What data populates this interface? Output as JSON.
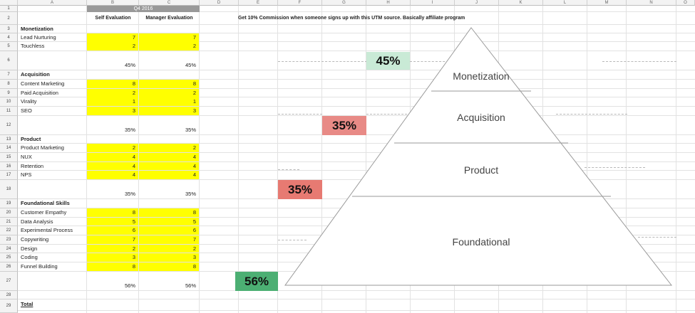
{
  "columns": [
    "A",
    "B",
    "C",
    "D",
    "E",
    "F",
    "G",
    "H",
    "I",
    "J",
    "K",
    "L",
    "M",
    "N",
    "O"
  ],
  "rows": [
    "1",
    "2",
    "3",
    "4",
    "5",
    "6",
    "7",
    "8",
    "9",
    "10",
    "11",
    "12",
    "13",
    "14",
    "15",
    "16",
    "17",
    "18",
    "19",
    "20",
    "21",
    "22",
    "23",
    "24",
    "25",
    "26",
    "27",
    "28",
    "29"
  ],
  "header": {
    "quarter": "Q4 2016",
    "self_eval": "Self Evaluation",
    "manager_eval": "Manager Evaluation",
    "note": "Get 10% Commission when someone signs up with this UTM source. Basically affiliate program"
  },
  "sections": {
    "monetization": {
      "title": "Monetization",
      "items": [
        {
          "label": "Lead Nurturing",
          "self": "7",
          "manager": "7"
        },
        {
          "label": "Touchless",
          "self": "2",
          "manager": "2"
        }
      ],
      "self_total": "45%",
      "manager_total": "45%"
    },
    "acquisition": {
      "title": "Acquisition",
      "items": [
        {
          "label": "Content Marketing",
          "self": "8",
          "manager": "8"
        },
        {
          "label": "Paid Acquisition",
          "self": "2",
          "manager": "2"
        },
        {
          "label": "Virality",
          "self": "1",
          "manager": "1"
        },
        {
          "label": "SEO",
          "self": "3",
          "manager": "3"
        }
      ],
      "self_total": "35%",
      "manager_total": "35%"
    },
    "product": {
      "title": "Product",
      "items": [
        {
          "label": "Product Marketing",
          "self": "2",
          "manager": "2"
        },
        {
          "label": "NUX",
          "self": "4",
          "manager": "4"
        },
        {
          "label": "Retention",
          "self": "4",
          "manager": "4"
        },
        {
          "label": "NPS",
          "self": "4",
          "manager": "4"
        }
      ],
      "self_total": "35%",
      "manager_total": "35%"
    },
    "foundational": {
      "title": "Foundational Skills",
      "items": [
        {
          "label": "Customer Empathy",
          "self": "8",
          "manager": "8"
        },
        {
          "label": "Data Analysis",
          "self": "5",
          "manager": "5"
        },
        {
          "label": "Experimental Process",
          "self": "6",
          "manager": "6"
        },
        {
          "label": "Copywriting",
          "self": "7",
          "manager": "7"
        },
        {
          "label": "Design",
          "self": "2",
          "manager": "2"
        },
        {
          "label": "Coding",
          "self": "3",
          "manager": "3"
        },
        {
          "label": "Funnel Building",
          "self": "8",
          "manager": "8"
        }
      ],
      "self_total": "56%",
      "manager_total": "56%"
    }
  },
  "total_label": "Total",
  "pyramid": {
    "layers": [
      "Monetization",
      "Acquisition",
      "Product",
      "Foundational"
    ],
    "badges": [
      {
        "value": "45%",
        "color": "#c9ead6"
      },
      {
        "value": "35%",
        "color": "#e88a86"
      },
      {
        "value": "35%",
        "color": "#e77a72"
      },
      {
        "value": "56%",
        "color": "#4caf73"
      }
    ]
  },
  "colors": {
    "highlight": "#ffff00",
    "header_dark": "#999999"
  }
}
